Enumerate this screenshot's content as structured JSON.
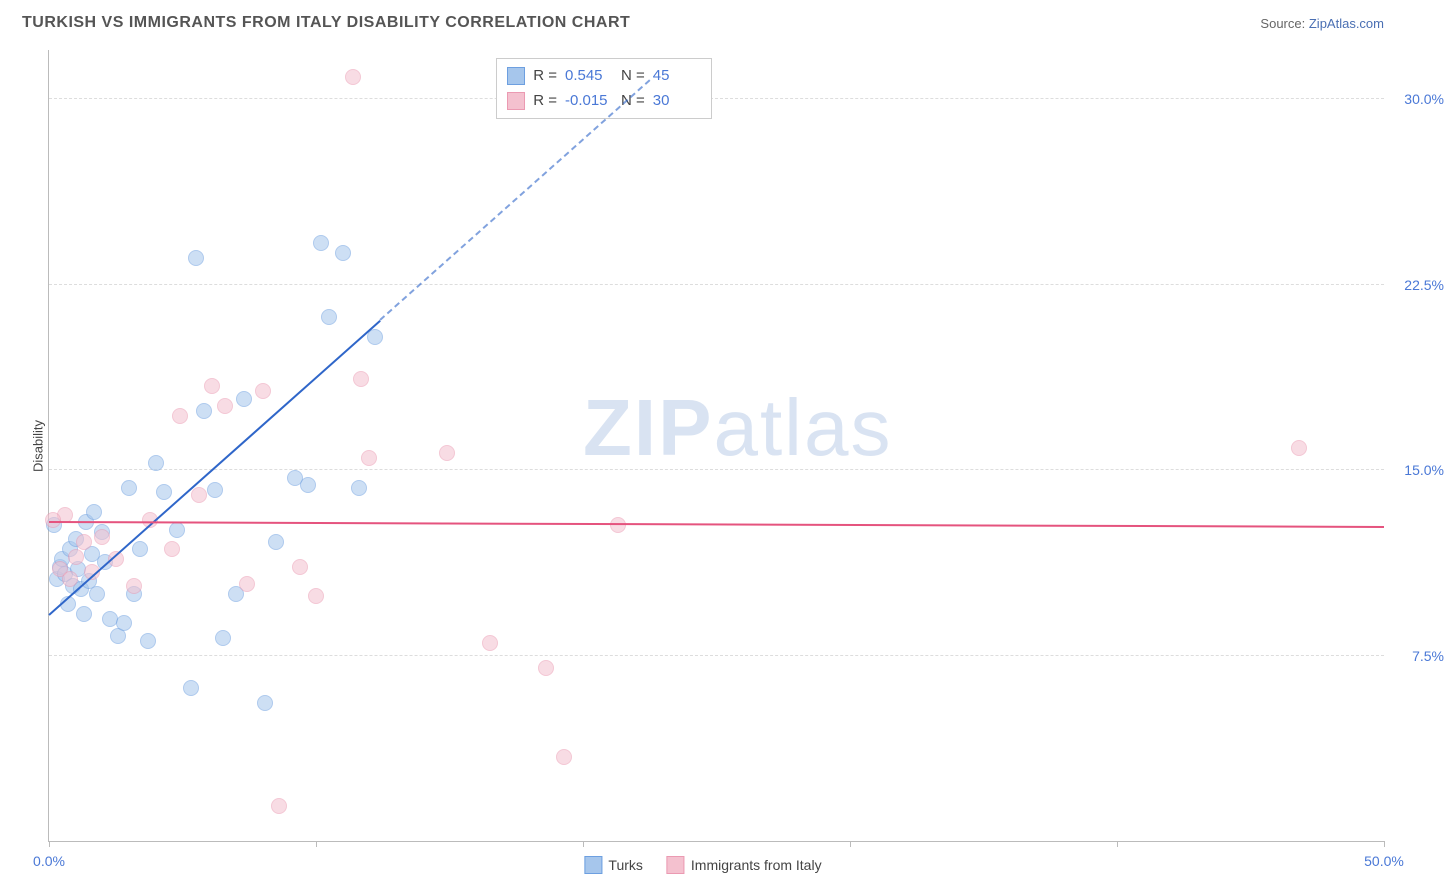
{
  "header": {
    "title": "TURKISH VS IMMIGRANTS FROM ITALY DISABILITY CORRELATION CHART",
    "source_label": "Source:",
    "source_name": "ZipAtlas.com"
  },
  "ylabel": "Disability",
  "watermark": {
    "bold": "ZIP",
    "light": "atlas"
  },
  "chart": {
    "type": "scatter",
    "background_color": "#ffffff",
    "grid_color": "#dddddd",
    "axis_color": "#bbbbbb",
    "tick_label_color": "#4a78d6",
    "xlim": [
      0,
      50
    ],
    "ylim": [
      0,
      32
    ],
    "x_ticks": [
      0,
      10,
      20,
      30,
      40,
      50
    ],
    "x_tick_labels": [
      "0.0%",
      "",
      "",
      "",
      "",
      "50.0%"
    ],
    "y_ticks": [
      7.5,
      15.0,
      22.5,
      30.0
    ],
    "y_tick_labels": [
      "7.5%",
      "15.0%",
      "22.5%",
      "30.0%"
    ],
    "point_radius": 8,
    "point_opacity": 0.55,
    "series": [
      {
        "name": "Turks",
        "color_fill": "#a6c6ec",
        "color_stroke": "#6d9fe0",
        "trend_color": "#2f66c9",
        "R": "0.545",
        "N": "45",
        "trend": {
          "x1": 0,
          "y1": 9.2,
          "x2": 12.4,
          "y2": 21.1,
          "x2_ext": 22.5,
          "y2_ext": 30.8
        },
        "points": [
          [
            0.3,
            10.6
          ],
          [
            0.4,
            11.1
          ],
          [
            0.5,
            11.4
          ],
          [
            0.6,
            10.8
          ],
          [
            0.7,
            9.6
          ],
          [
            0.8,
            11.8
          ],
          [
            0.9,
            10.3
          ],
          [
            1.0,
            12.2
          ],
          [
            1.1,
            11.0
          ],
          [
            1.2,
            10.2
          ],
          [
            1.3,
            9.2
          ],
          [
            1.4,
            12.9
          ],
          [
            1.5,
            10.5
          ],
          [
            1.6,
            11.6
          ],
          [
            1.8,
            10.0
          ],
          [
            2.0,
            12.5
          ],
          [
            2.1,
            11.3
          ],
          [
            2.3,
            9.0
          ],
          [
            2.6,
            8.3
          ],
          [
            2.8,
            8.8
          ],
          [
            3.0,
            14.3
          ],
          [
            3.2,
            10.0
          ],
          [
            3.4,
            11.8
          ],
          [
            3.7,
            8.1
          ],
          [
            4.0,
            15.3
          ],
          [
            4.3,
            14.1
          ],
          [
            4.8,
            12.6
          ],
          [
            5.3,
            6.2
          ],
          [
            5.5,
            23.6
          ],
          [
            5.8,
            17.4
          ],
          [
            6.2,
            14.2
          ],
          [
            6.5,
            8.2
          ],
          [
            7.0,
            10.0
          ],
          [
            7.3,
            17.9
          ],
          [
            8.1,
            5.6
          ],
          [
            8.5,
            12.1
          ],
          [
            9.2,
            14.7
          ],
          [
            9.7,
            14.4
          ],
          [
            10.2,
            24.2
          ],
          [
            10.5,
            21.2
          ],
          [
            11.0,
            23.8
          ],
          [
            11.6,
            14.3
          ],
          [
            12.2,
            20.4
          ],
          [
            0.2,
            12.8
          ],
          [
            1.7,
            13.3
          ]
        ]
      },
      {
        "name": "Immigrants from Italy",
        "color_fill": "#f4c1cf",
        "color_stroke": "#eb9ab2",
        "trend_color": "#e5537e",
        "R": "-0.015",
        "N": "30",
        "trend": {
          "x1": 0,
          "y1": 12.95,
          "x2": 50,
          "y2": 12.75
        },
        "points": [
          [
            0.4,
            11.0
          ],
          [
            0.6,
            13.2
          ],
          [
            0.8,
            10.6
          ],
          [
            1.0,
            11.5
          ],
          [
            1.3,
            12.1
          ],
          [
            1.6,
            10.9
          ],
          [
            2.0,
            12.3
          ],
          [
            2.5,
            11.4
          ],
          [
            3.2,
            10.3
          ],
          [
            3.8,
            13.0
          ],
          [
            4.6,
            11.8
          ],
          [
            4.9,
            17.2
          ],
          [
            5.6,
            14.0
          ],
          [
            6.1,
            18.4
          ],
          [
            6.6,
            17.6
          ],
          [
            7.4,
            10.4
          ],
          [
            8.0,
            18.2
          ],
          [
            8.6,
            1.4
          ],
          [
            9.4,
            11.1
          ],
          [
            10.0,
            9.9
          ],
          [
            11.4,
            30.9
          ],
          [
            11.7,
            18.7
          ],
          [
            12.0,
            15.5
          ],
          [
            14.9,
            15.7
          ],
          [
            16.5,
            8.0
          ],
          [
            18.6,
            7.0
          ],
          [
            19.3,
            3.4
          ],
          [
            21.3,
            12.8
          ],
          [
            46.8,
            15.9
          ],
          [
            0.15,
            13.0
          ]
        ]
      }
    ]
  },
  "stats_box": {
    "left_pct": 33.5,
    "top_pct": 1.0
  },
  "bottom_legend": [
    {
      "label": "Turks",
      "fill": "#a6c6ec",
      "stroke": "#6d9fe0"
    },
    {
      "label": "Immigrants from Italy",
      "fill": "#f4c1cf",
      "stroke": "#eb9ab2"
    }
  ]
}
